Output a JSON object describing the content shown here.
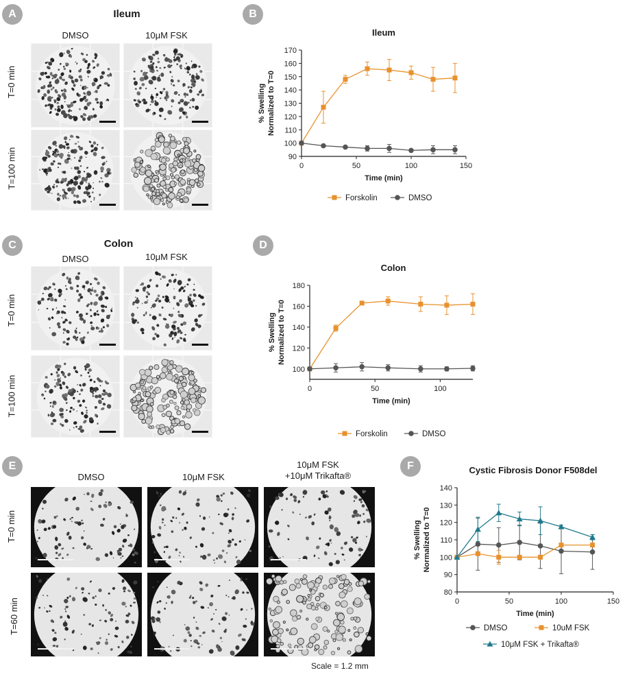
{
  "panels": {
    "A": {
      "badge": "A",
      "title": "Ileum",
      "col_labels": [
        "DMSO",
        "10μM FSK"
      ],
      "row_labels": [
        "T=0 min",
        "T=100 min"
      ]
    },
    "C": {
      "badge": "C",
      "title": "Colon",
      "col_labels": [
        "DMSO",
        "10μM FSK"
      ],
      "row_labels": [
        "T=0 min",
        "T=100 min"
      ]
    },
    "E": {
      "badge": "E",
      "col_labels": [
        "DMSO",
        "10μM FSK",
        "10μM FSK",
        "+10μM Trikafta®"
      ],
      "row_labels": [
        "T=0 min",
        "T=60 min"
      ],
      "scale_note": "Scale = 1.2 mm"
    },
    "B": {
      "badge": "B"
    },
    "D": {
      "badge": "D"
    },
    "F": {
      "badge": "F"
    }
  },
  "colors": {
    "forskolin": "#e8912d",
    "dmso": "#555555",
    "trikafta": "#1f7a8c",
    "badge": "#a9a9a9"
  },
  "chart_data": [
    {
      "id": "B",
      "type": "line",
      "title": "Ileum",
      "xlabel": "Time (min)",
      "ylabel": [
        "% Swelling",
        "Normalized to T=0"
      ],
      "xlim": [
        0,
        150
      ],
      "ylim": [
        90,
        170
      ],
      "xticks": [
        0,
        50,
        100,
        150
      ],
      "yticks": [
        90,
        100,
        110,
        120,
        130,
        140,
        150,
        160,
        170
      ],
      "series": [
        {
          "name": "Forskolin",
          "color": "#e8912d",
          "marker": "square",
          "x": [
            0,
            20,
            40,
            60,
            80,
            100,
            120,
            140
          ],
          "y": [
            100,
            127,
            148,
            156,
            155,
            153,
            148,
            149
          ],
          "err": [
            0,
            12,
            3,
            5,
            8,
            5,
            9,
            11
          ]
        },
        {
          "name": "DMSO",
          "color": "#555555",
          "marker": "circle",
          "x": [
            0,
            20,
            40,
            60,
            80,
            100,
            120,
            140
          ],
          "y": [
            100,
            98,
            97,
            96,
            96,
            94.5,
            95,
            95
          ],
          "err": [
            0,
            0.5,
            1,
            2,
            3,
            0.5,
            3,
            3
          ]
        }
      ],
      "legend": "bottom"
    },
    {
      "id": "D",
      "type": "line",
      "title": "Colon",
      "xlabel": "Time (min)",
      "ylabel": [
        "% Swelling",
        "Normalized to T=0"
      ],
      "xlim": [
        0,
        125
      ],
      "ylim": [
        90,
        180
      ],
      "xticks": [
        0,
        50,
        100
      ],
      "yticks": [
        100,
        120,
        140,
        160,
        180
      ],
      "series": [
        {
          "name": "Forskolin",
          "color": "#e8912d",
          "marker": "square",
          "x": [
            0,
            20,
            40,
            60,
            85,
            105,
            125
          ],
          "y": [
            100,
            139,
            163,
            165,
            162,
            161,
            162
          ],
          "err": [
            0,
            3,
            1,
            4,
            7,
            9,
            10
          ]
        },
        {
          "name": "DMSO",
          "color": "#555555",
          "marker": "circle",
          "x": [
            0,
            20,
            40,
            60,
            85,
            105,
            125
          ],
          "y": [
            100,
            101,
            102,
            101,
            100,
            100,
            100.5
          ],
          "err": [
            0,
            4,
            4,
            3,
            3,
            2,
            2.5
          ]
        }
      ],
      "legend": "bottom"
    },
    {
      "id": "F",
      "type": "line",
      "title": "Cystic Fibrosis Donor F508del",
      "xlabel": "Time (min)",
      "ylabel": [
        "% Swelling",
        "Normalized to T=0"
      ],
      "xlim": [
        0,
        150
      ],
      "ylim": [
        80,
        140
      ],
      "xticks": [
        0,
        50,
        100,
        150
      ],
      "yticks": [
        80,
        90,
        100,
        110,
        120,
        130,
        140
      ],
      "series": [
        {
          "name": "DMSO",
          "color": "#555555",
          "marker": "circle",
          "x": [
            0,
            20,
            40,
            60,
            80,
            100,
            130
          ],
          "y": [
            100,
            107.5,
            107,
            108.5,
            106.5,
            103.5,
            103
          ],
          "err": [
            0,
            15,
            10,
            10,
            13,
            13,
            10
          ]
        },
        {
          "name": "10uM FSK",
          "color": "#e8912d",
          "marker": "square",
          "x": [
            0,
            20,
            40,
            60,
            80,
            100,
            130
          ],
          "y": [
            100,
            102,
            100,
            100,
            100,
            107,
            107
          ],
          "err": [
            0,
            0,
            4,
            0,
            0,
            0,
            0
          ]
        },
        {
          "name": "10μM FSK + Trikafta®",
          "color": "#1f7a8c",
          "marker": "triangle",
          "x": [
            0,
            20,
            40,
            60,
            80,
            100,
            130
          ],
          "y": [
            100,
            116,
            125.5,
            122,
            121,
            117.5,
            111.5
          ],
          "err": [
            0,
            7,
            5,
            4,
            8,
            1,
            1.5
          ]
        }
      ],
      "legend": "bottom"
    }
  ]
}
